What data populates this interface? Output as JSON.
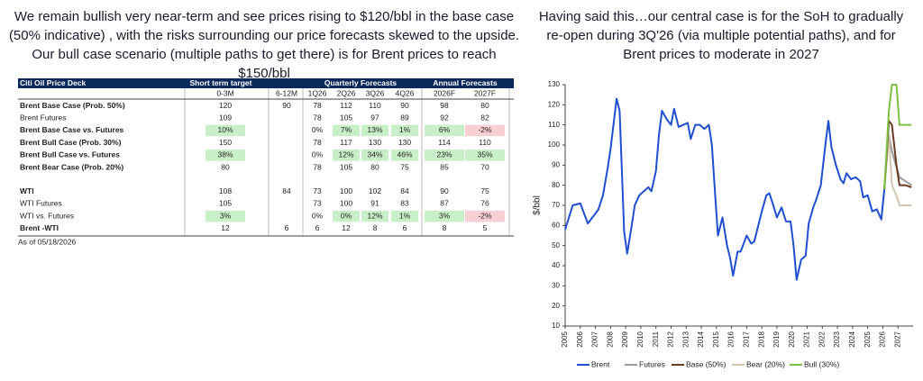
{
  "left_text": "We remain bullish very near-term and see prices rising to $120/bbl in the base case (50% indicative) , with the risks surrounding our price forecasts skewed to the upside. Our bull case scenario (multiple paths to get there) is for Brent prices to reach $150/bbl",
  "right_text": "Having said this…our central case is for the SoH to gradually re-open during 3Q'26 (via multiple potential paths), and for Brent prices to moderate in 2027",
  "table": {
    "title": "Citi Oil Price Deck",
    "groups": [
      "Short term target",
      "Quarterly Forecasts",
      "Annual Forecasts"
    ],
    "columns": [
      "0-3M",
      "6-12M",
      "1Q26",
      "2Q26",
      "3Q26",
      "4Q26",
      "2026F",
      "2027F"
    ],
    "rows": [
      {
        "label": "Brent Base Case (Prob. 50%)",
        "cells": [
          "120",
          "90",
          "78",
          "112",
          "110",
          "90",
          "98",
          "80"
        ]
      },
      {
        "label": "Brent Futures",
        "cells": [
          "109",
          null,
          "78",
          "105",
          "97",
          "89",
          "92",
          "82"
        ]
      },
      {
        "label": "Brent Base Case vs. Futures",
        "cells": [
          "10%",
          null,
          "0%",
          "7%",
          "13%",
          "1%",
          "6%",
          "-2%"
        ]
      },
      {
        "label": "Brent Bull Case (Prob. 30%)",
        "cells": [
          "150",
          null,
          "78",
          "117",
          "130",
          "130",
          "114",
          "110"
        ]
      },
      {
        "label": "Brent Bull Case vs. Futures",
        "cells": [
          "38%",
          null,
          "0%",
          "12%",
          "34%",
          "46%",
          "23%",
          "35%"
        ]
      },
      {
        "label": "Brent Bear Case (Prob. 20%)",
        "cells": [
          "80",
          null,
          "78",
          "105",
          "80",
          "75",
          "85",
          "70"
        ]
      },
      {
        "label": "WTI",
        "cells": [
          "108",
          "84",
          "73",
          "100",
          "102",
          "84",
          "90",
          "75"
        ]
      },
      {
        "label": "WTI Futures",
        "cells": [
          "105",
          null,
          "73",
          "100",
          "91",
          "83",
          "87",
          "76"
        ]
      },
      {
        "label": "WTI vs. Futures",
        "cells": [
          "3%",
          null,
          "0%",
          "0%",
          "12%",
          "1%",
          "3%",
          "-2%"
        ]
      },
      {
        "label": "Brent -WTI",
        "cells": [
          "12",
          "6",
          "6",
          "12",
          "8",
          "6",
          "8",
          "5"
        ]
      }
    ],
    "note": "As of 05/18/2026"
  },
  "chart_data": {
    "type": "line",
    "ylabel": "$/bbl",
    "xlim": [
      2005,
      2028
    ],
    "xticks": [
      2005,
      2006,
      2007,
      2008,
      2009,
      2010,
      2011,
      2012,
      2013,
      2014,
      2015,
      2016,
      2017,
      2018,
      2019,
      2020,
      2021,
      2022,
      2023,
      2024,
      2025,
      2026,
      2027
    ],
    "ylim": [
      10,
      130
    ],
    "yticks": [
      10,
      20,
      30,
      40,
      50,
      60,
      70,
      80,
      90,
      100,
      110,
      120,
      130
    ],
    "series": [
      {
        "name": "Brent",
        "color": "#1f4fd0",
        "x": [
          2005,
          2005.5,
          2006,
          2006.5,
          2007.2,
          2007.5,
          2007.8,
          2008,
          2008.4,
          2008.6,
          2008.9,
          2009.1,
          2009.4,
          2009.6,
          2009.9,
          2010.2,
          2010.5,
          2010.7,
          2011,
          2011.2,
          2011.4,
          2011.7,
          2012,
          2012.2,
          2012.5,
          2012.8,
          2013.1,
          2013.3,
          2013.6,
          2013.9,
          2014.2,
          2014.5,
          2014.7,
          2014.9,
          2015.1,
          2015.4,
          2015.7,
          2015.9,
          2016.1,
          2016.4,
          2016.6,
          2016.8,
          2017,
          2017.3,
          2017.5,
          2017.8,
          2018,
          2018.3,
          2018.5,
          2018.8,
          2019,
          2019.3,
          2019.6,
          2019.9,
          2020.1,
          2020.3,
          2020.6,
          2020.9,
          2021.1,
          2021.4,
          2021.6,
          2021.9,
          2022.2,
          2022.4,
          2022.6,
          2022.9,
          2023.2,
          2023.4,
          2023.6,
          2023.9,
          2024.2,
          2024.5,
          2024.7,
          2025,
          2025.3,
          2025.6,
          2025.9,
          2026.1
        ],
        "values": [
          58,
          70,
          71,
          61,
          68,
          75,
          88,
          98,
          123,
          117,
          57,
          46,
          60,
          70,
          75,
          77,
          79,
          77,
          87,
          105,
          117,
          113,
          110,
          118,
          109,
          110,
          111,
          103,
          110,
          110,
          108,
          110,
          100,
          77,
          55,
          64,
          50,
          44,
          35,
          47,
          47,
          51,
          55,
          51,
          52,
          61,
          67,
          75,
          76,
          69,
          64,
          69,
          62,
          62,
          50,
          33,
          43,
          45,
          61,
          69,
          73,
          80,
          100,
          112,
          99,
          90,
          83,
          81,
          86,
          83,
          84,
          82,
          74,
          75,
          67,
          68,
          63,
          78
        ]
      },
      {
        "name": "Futures",
        "color": "#9a9a9a",
        "x": [
          2026.1,
          2026.4,
          2026.6,
          2026.9,
          2027.1,
          2027.5,
          2027.9
        ],
        "values": [
          78,
          105,
          97,
          89,
          84,
          82,
          80
        ]
      },
      {
        "name": "Base (50%)",
        "color": "#6b3a1f",
        "x": [
          2026.1,
          2026.4,
          2026.6,
          2026.9,
          2027.1,
          2027.5,
          2027.9
        ],
        "values": [
          78,
          112,
          110,
          90,
          80,
          80,
          79
        ]
      },
      {
        "name": "Bear (20%)",
        "color": "#d4c5b0",
        "x": [
          2026.1,
          2026.4,
          2026.6,
          2026.9,
          2027.1,
          2027.5,
          2027.9
        ],
        "values": [
          78,
          105,
          80,
          75,
          70,
          70,
          70
        ]
      },
      {
        "name": "Bull (30%)",
        "color": "#7cc242",
        "x": [
          2026.1,
          2026.4,
          2026.6,
          2026.9,
          2027.1,
          2027.5,
          2027.9
        ],
        "values": [
          78,
          117,
          130,
          130,
          110,
          110,
          110
        ]
      }
    ]
  }
}
